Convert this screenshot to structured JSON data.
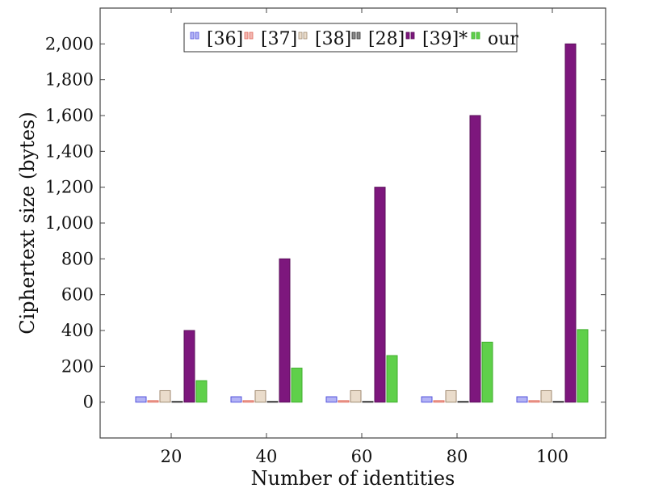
{
  "chart_data": {
    "type": "bar",
    "xlabel": "Number of identities",
    "ylabel": "Ciphertext size (bytes)",
    "categories": [
      "20",
      "40",
      "60",
      "80",
      "100"
    ],
    "y_ticks": [
      "0",
      "200",
      "400",
      "600",
      "800",
      "1,000",
      "1,200",
      "1,400",
      "1,600",
      "1,800",
      "2,000"
    ],
    "ylim": [
      -200,
      2200
    ],
    "grid": false,
    "legend_position": "top",
    "series": [
      {
        "name": "[36]",
        "values": [
          30,
          30,
          30,
          30,
          30
        ],
        "fill": "#b3b3f5",
        "stroke": "#5555dd"
      },
      {
        "name": "[37]",
        "values": [
          8,
          8,
          8,
          8,
          8
        ],
        "fill": "#f2b6b0",
        "stroke": "#e06a5a"
      },
      {
        "name": "[38]",
        "values": [
          64,
          64,
          64,
          64,
          64
        ],
        "fill": "#eadccb",
        "stroke": "#a08a70"
      },
      {
        "name": "[28]",
        "values": [
          4,
          4,
          4,
          4,
          4
        ],
        "fill": "#8a8a8a",
        "stroke": "#333333"
      },
      {
        "name": "[39]*",
        "values": [
          400,
          800,
          1200,
          1600,
          2000
        ],
        "fill": "#7d177d",
        "stroke": "#5a0f5a"
      },
      {
        "name": "our",
        "values": [
          120,
          190,
          260,
          335,
          405
        ],
        "fill": "#5fd04a",
        "stroke": "#3fae2c"
      }
    ]
  }
}
